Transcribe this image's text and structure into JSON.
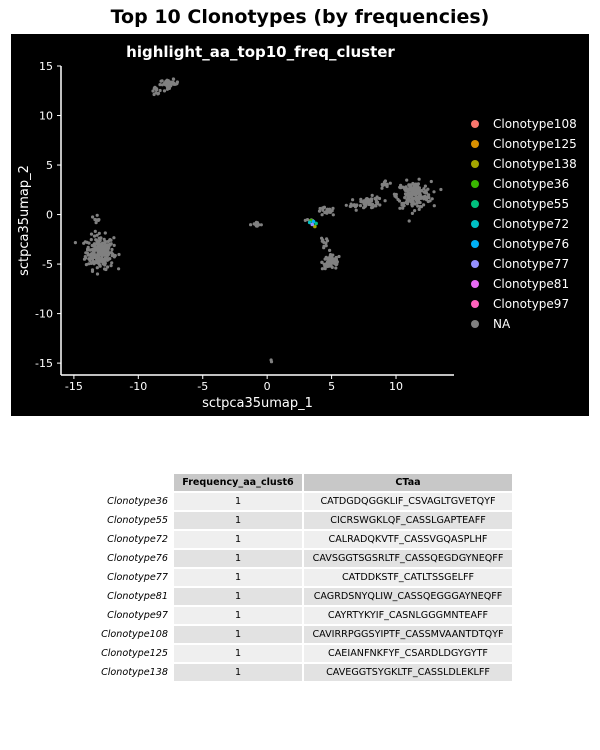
{
  "page_title": "Top 10 Clonotypes (by frequencies)",
  "colors": {
    "panel_background": "#000000",
    "na_points": "#808080",
    "axis_text": "#ffffff"
  },
  "chart_data": {
    "type": "scatter",
    "title": "highlight_aa_top10_freq_cluster",
    "xlabel": "sctpca35umap_1",
    "ylabel": "sctpca35umap_2",
    "xlim": [
      -16,
      14.5
    ],
    "ylim": [
      -16.2,
      15
    ],
    "xticks": [
      -15,
      -10,
      -5,
      0,
      5,
      10
    ],
    "yticks": [
      15,
      10,
      5,
      0,
      -5,
      -10,
      -15
    ],
    "tick_labels_x": [
      "-15",
      "-10",
      "-5",
      "0",
      "5",
      "10"
    ],
    "tick_labels_y": [
      "15",
      "10",
      "5",
      "0",
      "-5",
      "-10",
      "-15"
    ],
    "grid": false,
    "legend_placement": "right",
    "series": [
      {
        "name": "Clonotype108",
        "color": "#F8766D",
        "points": []
      },
      {
        "name": "Clonotype125",
        "color": "#D89000",
        "points": []
      },
      {
        "name": "Clonotype138",
        "color": "#A3A500",
        "points": [
          [
            3.7,
            -1.2
          ]
        ]
      },
      {
        "name": "Clonotype36",
        "color": "#39B600",
        "points": [
          [
            3.4,
            -0.6
          ]
        ]
      },
      {
        "name": "Clonotype55",
        "color": "#00BF7D",
        "points": [
          [
            3.8,
            -0.9
          ]
        ]
      },
      {
        "name": "Clonotype72",
        "color": "#00BFC4",
        "points": [
          [
            3.3,
            -0.8
          ]
        ]
      },
      {
        "name": "Clonotype76",
        "color": "#00B0F6",
        "points": [
          [
            3.6,
            -0.7
          ]
        ]
      },
      {
        "name": "Clonotype77",
        "color": "#9590FF",
        "points": [
          [
            3.5,
            -1.0
          ]
        ]
      },
      {
        "name": "Clonotype81",
        "color": "#E76BF3",
        "points": []
      },
      {
        "name": "Clonotype97",
        "color": "#FF62BC",
        "points": []
      },
      {
        "name": "NA",
        "color": "#808080",
        "clusters": [
          {
            "cx": -13.0,
            "cy": -3.8,
            "sx": 0.9,
            "sy": 1.4,
            "n": 240
          },
          {
            "cx": -13.2,
            "cy": -0.3,
            "sx": 0.2,
            "sy": 0.4,
            "n": 8
          },
          {
            "cx": -7.6,
            "cy": 13.2,
            "sx": 0.6,
            "sy": 0.35,
            "n": 40
          },
          {
            "cx": -8.6,
            "cy": 12.5,
            "sx": 0.3,
            "sy": 0.3,
            "n": 12
          },
          {
            "cx": -0.9,
            "cy": -1.0,
            "sx": 0.4,
            "sy": 0.15,
            "n": 14
          },
          {
            "cx": 0.2,
            "cy": -14.7,
            "sx": 0.1,
            "sy": 0.1,
            "n": 2
          },
          {
            "cx": 5.0,
            "cy": -4.8,
            "sx": 0.6,
            "sy": 0.6,
            "n": 70
          },
          {
            "cx": 4.4,
            "cy": -3.0,
            "sx": 0.3,
            "sy": 0.7,
            "n": 10
          },
          {
            "cx": 4.6,
            "cy": 0.3,
            "sx": 0.6,
            "sy": 0.35,
            "n": 22
          },
          {
            "cx": 8.0,
            "cy": 1.2,
            "sx": 0.8,
            "sy": 0.5,
            "n": 55
          },
          {
            "cx": 6.5,
            "cy": 1.0,
            "sx": 0.6,
            "sy": 0.2,
            "n": 8
          },
          {
            "cx": 11.4,
            "cy": 2.0,
            "sx": 1.1,
            "sy": 1.1,
            "n": 180
          },
          {
            "cx": 9.2,
            "cy": 3.0,
            "sx": 0.4,
            "sy": 0.35,
            "n": 15
          },
          {
            "cx": 3.3,
            "cy": -0.6,
            "sx": 0.3,
            "sy": 0.2,
            "n": 5
          }
        ]
      }
    ]
  },
  "table": {
    "headers": [
      "Frequency_aa_clust6",
      "CTaa"
    ],
    "rows": [
      {
        "name": "Clonotype36",
        "freq": "1",
        "ctaa": "CATDGDQGGKLIF_CSVAGLTGVETQYF"
      },
      {
        "name": "Clonotype55",
        "freq": "1",
        "ctaa": "CICRSWGKLQF_CASSLGAPTEAFF"
      },
      {
        "name": "Clonotype72",
        "freq": "1",
        "ctaa": "CALRADQKVTF_CASSVGQASPLHF"
      },
      {
        "name": "Clonotype76",
        "freq": "1",
        "ctaa": "CAVSGGTSGSRLTF_CASSQEGDGYNEQFF"
      },
      {
        "name": "Clonotype77",
        "freq": "1",
        "ctaa": "CATDDKSTF_CATLTSSGELFF"
      },
      {
        "name": "Clonotype81",
        "freq": "1",
        "ctaa": "CAGRDSNYQLIW_CASSQEGGGAYNEQFF"
      },
      {
        "name": "Clonotype97",
        "freq": "1",
        "ctaa": "CAYRTYKYIF_CASNLGGGMNTEAFF"
      },
      {
        "name": "Clonotype108",
        "freq": "1",
        "ctaa": "CAVIRRPGGSYIPTF_CASSMVAANTDTQYF"
      },
      {
        "name": "Clonotype125",
        "freq": "1",
        "ctaa": "CAEIANFNKFYF_CSARDLDGYGYTF"
      },
      {
        "name": "Clonotype138",
        "freq": "1",
        "ctaa": "CAVEGGTSYGKLTF_CASSLDLEKLFF"
      }
    ]
  }
}
